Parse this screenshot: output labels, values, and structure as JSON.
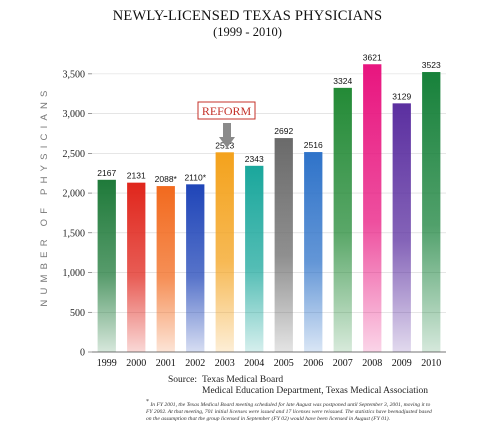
{
  "title": "NEWLY-LICENSED TEXAS PHYSICIANS",
  "subtitle": "(1999 - 2010)",
  "chart_data": {
    "type": "bar",
    "title": "NEWLY-LICENSED TEXAS PHYSICIANS",
    "subtitle": "(1999 - 2010)",
    "xlabel": "",
    "ylabel": "NUMBER OF PHYSICIANS",
    "ylim": [
      0,
      3750
    ],
    "yticks": [
      0,
      500,
      1000,
      1500,
      2000,
      2500,
      3000,
      3500
    ],
    "ytick_labels": [
      "0",
      "500",
      "1,000",
      "1,500",
      "2,000",
      "2,500",
      "3,000",
      "3,500"
    ],
    "grid": true,
    "categories": [
      "1999",
      "2000",
      "2001",
      "2002",
      "2003",
      "2004",
      "2005",
      "2006",
      "2007",
      "2008",
      "2009",
      "2010"
    ],
    "values": [
      2167,
      2131,
      2088,
      2110,
      2513,
      2343,
      2692,
      2516,
      3324,
      3621,
      3129,
      3523
    ],
    "value_labels": [
      "2167",
      "2131",
      "2088*",
      "2110*",
      "2513",
      "2343",
      "2692",
      "2516",
      "3324",
      "3621",
      "3129",
      "3523"
    ],
    "colors": [
      "#1f7a3a",
      "#e0261c",
      "#f26a1e",
      "#1f45b8",
      "#f4a21c",
      "#1aa79c",
      "#6a6a6a",
      "#2f73c9",
      "#238a36",
      "#e8157f",
      "#5b2fa0",
      "#17813a"
    ],
    "annotation": {
      "text": "REFORM",
      "category": "2003"
    }
  },
  "source": {
    "label": "Source:",
    "line1": "Texas Medical Board",
    "line2": "Medical Education Department, Texas Medical Association"
  },
  "footnote": {
    "mark": "*",
    "text": "In FY 2001, the Texas Medical Board meeting scheduled for late August was postponed until September 3, 2001, moving it to FY 2002. At that meeting, 701 initial licenses were issued and 17 licenses were reissued. The statistics have beenadjusted based on the assumption that the group licensed in September (FY 02) would have been licensed in August (FY 01)."
  }
}
